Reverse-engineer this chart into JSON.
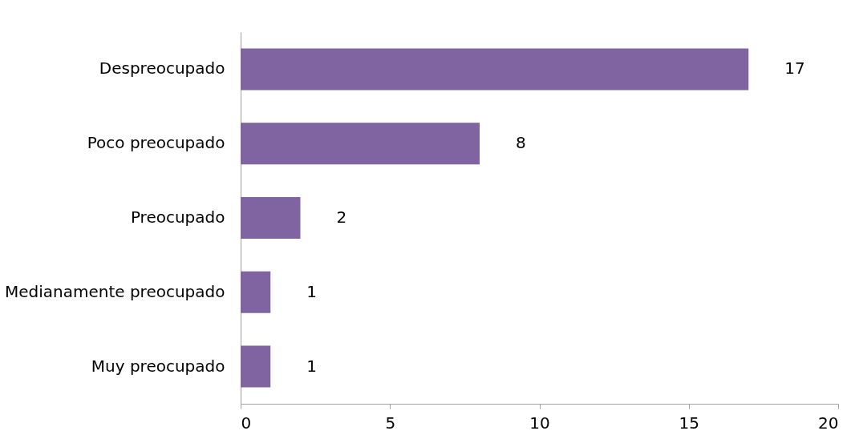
{
  "chart_data": {
    "type": "bar",
    "orientation": "horizontal",
    "categories": [
      "Despreocupado",
      "Poco preocupado",
      "Preocupado",
      "Medianamente preocupado",
      "Muy preocupado"
    ],
    "values": [
      17,
      8,
      2,
      1,
      1
    ],
    "color": "#8064a2",
    "xlim": [
      0,
      20
    ],
    "xticks": [
      0,
      5,
      10,
      15,
      20
    ],
    "data_labels": true,
    "grid": false
  }
}
